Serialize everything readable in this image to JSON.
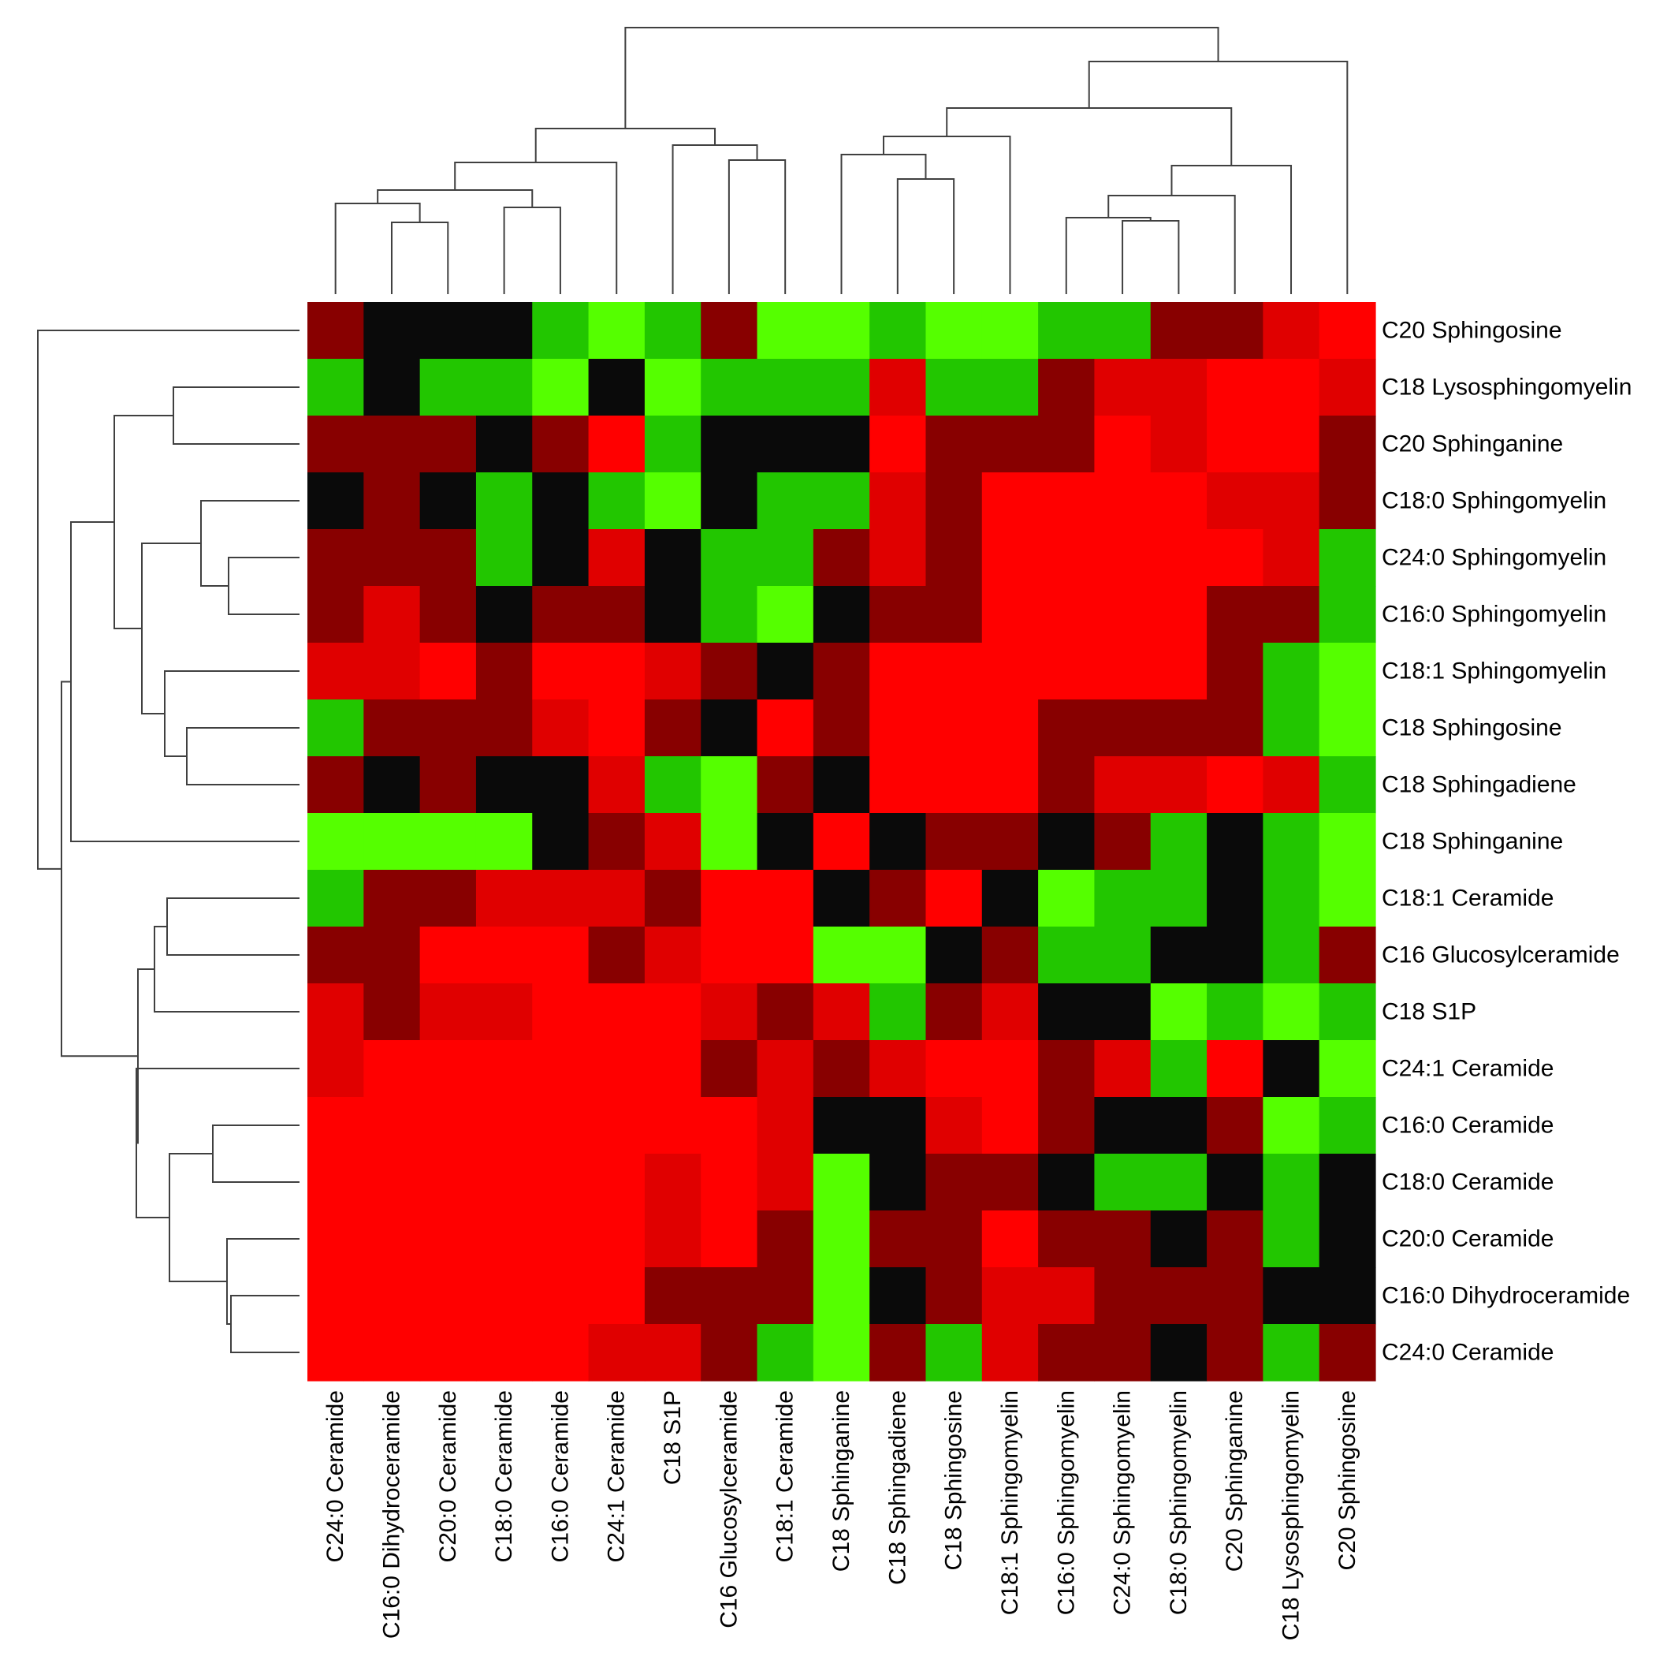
{
  "chart_data": {
    "type": "heatmap",
    "title": "",
    "xlabel": "",
    "ylabel": "",
    "legend": "none",
    "grid": false,
    "dendrograms": [
      "top",
      "left"
    ],
    "color_levels": {
      "g1": "#55FF00",
      "g2": "#22C600",
      "k": "#0A0A0A",
      "d": "#880000",
      "r1": "#E00000",
      "r2": "#FF0000"
    },
    "columns": [
      "C24:0 Ceramide",
      "C16:0 Dihydroceramide",
      "C20:0 Ceramide",
      "C18:0 Ceramide",
      "C16:0 Ceramide",
      "C24:1 Ceramide",
      "C18 S1P",
      "C16 Glucosylceramide",
      "C18:1 Ceramide",
      "C18 Sphinganine",
      "C18 Sphingadiene",
      "C18 Sphingosine",
      "C18:1 Sphingomyelin",
      "C16:0 Sphingomyelin",
      "C24:0 Sphingomyelin",
      "C18:0 Sphingomyelin",
      "C20 Sphinganine",
      "C18 Lysosphingomyelin",
      "C20 Sphingosine"
    ],
    "rows": [
      "C20 Sphingosine",
      "C18 Lysosphingomyelin",
      "C20 Sphinganine",
      "C18:0 Sphingomyelin",
      "C24:0 Sphingomyelin",
      "C16:0 Sphingomyelin",
      "C18:1 Sphingomyelin",
      "C18 Sphingosine",
      "C18 Sphingadiene",
      "C18 Sphinganine",
      "C18:1 Ceramide",
      "C16 Glucosylceramide",
      "C18 S1P",
      "C24:1 Ceramide",
      "C16:0 Ceramide",
      "C18:0 Ceramide",
      "C20:0 Ceramide",
      "C16:0 Dihydroceramide",
      "C24:0 Ceramide"
    ],
    "cells": [
      [
        "d",
        "k",
        "k",
        "k",
        "g2",
        "g1",
        "g2",
        "d",
        "g1",
        "g1",
        "g2",
        "g1",
        "g1",
        "g2",
        "g2",
        "d",
        "d",
        "r1",
        "r2"
      ],
      [
        "g2",
        "k",
        "g2",
        "g2",
        "g1",
        "k",
        "g1",
        "g2",
        "g2",
        "g2",
        "r1",
        "g2",
        "g2",
        "d",
        "r1",
        "r1",
        "r2",
        "r2",
        "r1"
      ],
      [
        "d",
        "d",
        "d",
        "k",
        "d",
        "r2",
        "g2",
        "k",
        "k",
        "k",
        "r2",
        "d",
        "d",
        "d",
        "r2",
        "r1",
        "r2",
        "r2",
        "d"
      ],
      [
        "k",
        "d",
        "k",
        "g2",
        "k",
        "g2",
        "g1",
        "k",
        "g2",
        "g2",
        "r1",
        "d",
        "r2",
        "r2",
        "r2",
        "r2",
        "r1",
        "r1",
        "d"
      ],
      [
        "d",
        "d",
        "d",
        "g2",
        "k",
        "r1",
        "k",
        "g2",
        "g2",
        "d",
        "r1",
        "d",
        "r2",
        "r2",
        "r2",
        "r2",
        "r2",
        "r1",
        "g2"
      ],
      [
        "d",
        "r1",
        "d",
        "k",
        "d",
        "d",
        "k",
        "g2",
        "g1",
        "k",
        "d",
        "d",
        "r2",
        "r2",
        "r2",
        "r2",
        "d",
        "d",
        "g2"
      ],
      [
        "r1",
        "r1",
        "r2",
        "d",
        "r2",
        "r2",
        "r1",
        "d",
        "k",
        "d",
        "r2",
        "r2",
        "r2",
        "r2",
        "r2",
        "r2",
        "d",
        "g2",
        "g1"
      ],
      [
        "g2",
        "d",
        "d",
        "d",
        "r1",
        "r2",
        "d",
        "k",
        "r2",
        "d",
        "r2",
        "r2",
        "r2",
        "d",
        "d",
        "d",
        "d",
        "g2",
        "g1"
      ],
      [
        "d",
        "k",
        "d",
        "k",
        "k",
        "r1",
        "g2",
        "g1",
        "d",
        "k",
        "r2",
        "r2",
        "r2",
        "d",
        "r1",
        "r1",
        "r2",
        "r1",
        "g2"
      ],
      [
        "g1",
        "g1",
        "g1",
        "g1",
        "k",
        "d",
        "r1",
        "g1",
        "k",
        "r2",
        "k",
        "d",
        "d",
        "k",
        "d",
        "g2",
        "k",
        "g2",
        "g1"
      ],
      [
        "g2",
        "d",
        "d",
        "r1",
        "r1",
        "r1",
        "d",
        "r2",
        "r2",
        "k",
        "d",
        "r2",
        "k",
        "g1",
        "g2",
        "g2",
        "k",
        "g2",
        "g1"
      ],
      [
        "d",
        "d",
        "r2",
        "r2",
        "r2",
        "d",
        "r1",
        "r2",
        "r2",
        "g1",
        "g1",
        "k",
        "d",
        "g2",
        "g2",
        "k",
        "k",
        "g2",
        "d"
      ],
      [
        "r1",
        "d",
        "r1",
        "r1",
        "r2",
        "r2",
        "r2",
        "r1",
        "d",
        "r1",
        "g2",
        "d",
        "r1",
        "k",
        "k",
        "g1",
        "g2",
        "g1",
        "g2"
      ],
      [
        "r1",
        "r2",
        "r2",
        "r2",
        "r2",
        "r2",
        "r2",
        "d",
        "r1",
        "d",
        "r1",
        "r2",
        "r2",
        "d",
        "r1",
        "g2",
        "r2",
        "k",
        "g1"
      ],
      [
        "r2",
        "r2",
        "r2",
        "r2",
        "r2",
        "r2",
        "r2",
        "r2",
        "r1",
        "k",
        "k",
        "r1",
        "r2",
        "d",
        "k",
        "k",
        "d",
        "g1",
        "g2"
      ],
      [
        "r2",
        "r2",
        "r2",
        "r2",
        "r2",
        "r2",
        "r1",
        "r2",
        "r1",
        "g1",
        "k",
        "d",
        "d",
        "k",
        "g2",
        "g2",
        "k",
        "g2",
        "k"
      ],
      [
        "r2",
        "r2",
        "r2",
        "r2",
        "r2",
        "r2",
        "r1",
        "r2",
        "d",
        "g1",
        "d",
        "d",
        "r2",
        "d",
        "d",
        "k",
        "d",
        "g2",
        "k"
      ],
      [
        "r2",
        "r2",
        "r2",
        "r2",
        "r2",
        "r2",
        "d",
        "d",
        "d",
        "g1",
        "k",
        "d",
        "r1",
        "r1",
        "d",
        "d",
        "d",
        "k",
        "k"
      ],
      [
        "r2",
        "r2",
        "r2",
        "r2",
        "r2",
        "r1",
        "r1",
        "d",
        "g2",
        "g1",
        "d",
        "g2",
        "r1",
        "d",
        "d",
        "k",
        "d",
        "g2",
        "d"
      ]
    ]
  }
}
